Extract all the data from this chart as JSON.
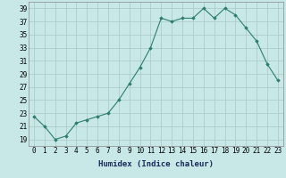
{
  "x": [
    0,
    1,
    2,
    3,
    4,
    5,
    6,
    7,
    8,
    9,
    10,
    11,
    12,
    13,
    14,
    15,
    16,
    17,
    18,
    19,
    20,
    21,
    22,
    23
  ],
  "y": [
    22.5,
    21.0,
    19.0,
    19.5,
    21.5,
    22.0,
    22.5,
    23.0,
    25.0,
    27.5,
    30.0,
    33.0,
    37.5,
    37.0,
    37.5,
    37.5,
    39.0,
    37.5,
    39.0,
    38.0,
    36.0,
    34.0,
    30.5,
    28.0
  ],
  "line_color": "#2e7d6e",
  "marker": "D",
  "marker_size": 1.8,
  "bg_color": "#c8e8e8",
  "grid_color": "#a8c8c8",
  "xlabel": "Humidex (Indice chaleur)",
  "xlim": [
    -0.5,
    23.5
  ],
  "ylim": [
    18,
    40
  ],
  "yticks": [
    19,
    21,
    23,
    25,
    27,
    29,
    31,
    33,
    35,
    37,
    39
  ],
  "xticks": [
    0,
    1,
    2,
    3,
    4,
    5,
    6,
    7,
    8,
    9,
    10,
    11,
    12,
    13,
    14,
    15,
    16,
    17,
    18,
    19,
    20,
    21,
    22,
    23
  ],
  "xlabel_fontsize": 6.5,
  "tick_fontsize": 5.5,
  "line_width": 0.8
}
